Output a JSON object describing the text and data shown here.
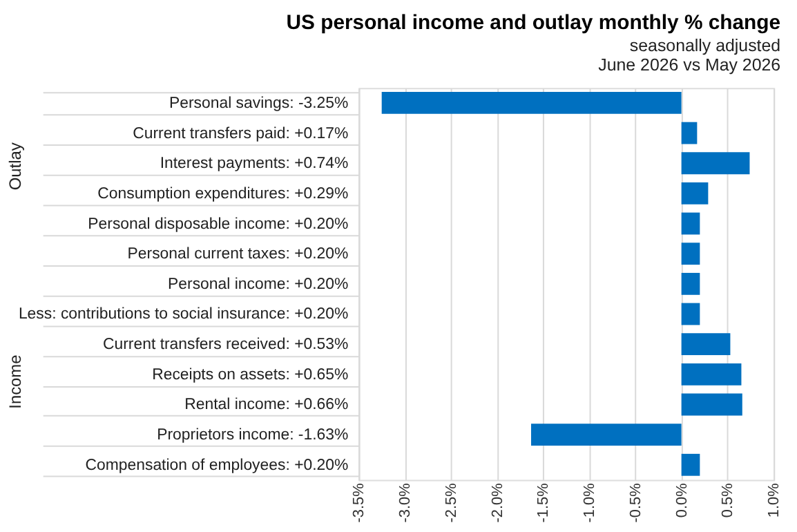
{
  "chart_data": {
    "type": "bar",
    "orientation": "horizontal",
    "title": "US personal  income and outlay monthly % change",
    "subtitle": [
      "seasonally adjusted",
      "June 2026 vs May 2026"
    ],
    "categories": [
      "Personal savings:  -3.25%",
      "Current transfers paid:  +0.17%",
      "Interest payments:  +0.74%",
      "Consumption expenditures:  +0.29%",
      "Personal disposable income:  +0.20%",
      "Personal current taxes:  +0.20%",
      "Personal income:  +0.20%",
      "Less: contributions to social insurance:  +0.20%",
      "Current transfers received:  +0.53%",
      "Receipts on assets:  +0.65%",
      "Rental income:  +0.66%",
      "Proprietors income:  -1.63%",
      "Compensation of employees:  +0.20%"
    ],
    "values": [
      -3.25,
      0.17,
      0.74,
      0.29,
      0.2,
      0.2,
      0.2,
      0.2,
      0.53,
      0.65,
      0.66,
      -1.63,
      0.2
    ],
    "color": "#0070c0",
    "xlim": [
      -3.5,
      1.0
    ],
    "xticks": [
      {
        "value": -3.5,
        "label": "-3.5%"
      },
      {
        "value": -3.0,
        "label": "-3.0%"
      },
      {
        "value": -2.5,
        "label": "-2.5%"
      },
      {
        "value": -2.0,
        "label": "-2.0%"
      },
      {
        "value": -1.5,
        "label": "-1.5%"
      },
      {
        "value": -1.0,
        "label": "-1.0%"
      },
      {
        "value": -0.5,
        "label": "-0.5%"
      },
      {
        "value": 0.0,
        "label": "0.0%"
      },
      {
        "value": 0.5,
        "label": "0.5%"
      },
      {
        "value": 1.0,
        "label": "1.0%"
      }
    ],
    "grid": "x",
    "annotations": [
      "Outlay",
      "Income"
    ]
  }
}
